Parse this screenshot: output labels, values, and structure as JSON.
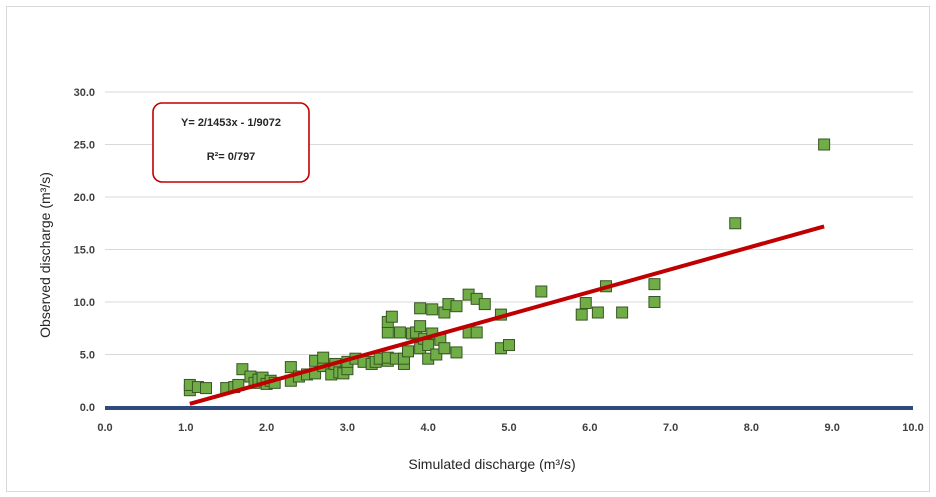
{
  "chart_data": {
    "type": "scatter",
    "xlabel": "Simulated discharge (m³/s)",
    "ylabel": "Observed discharge (m³/s)",
    "xlim": [
      0,
      10
    ],
    "ylim": [
      0,
      30
    ],
    "x_ticks": [
      "0.0",
      "1.0",
      "2.0",
      "3.0",
      "4.0",
      "5.0",
      "6.0",
      "7.0",
      "8.0",
      "9.0",
      "10.0"
    ],
    "y_ticks": [
      "0.0",
      "5.0",
      "10.0",
      "15.0",
      "20.0",
      "25.0",
      "30.0"
    ],
    "grid": "horizontal",
    "marker_color": "#70ad47",
    "marker_edge_color": "#375623",
    "trendline_color": "#c00000",
    "equation_box_color": "#c00000",
    "equation": "Y= 2/1453x - 1/9072",
    "r_squared": "R²= 0/797",
    "trendline": {
      "x": [
        1.05,
        8.9
      ],
      "y": [
        0.3,
        17.2
      ]
    },
    "points": [
      [
        1.05,
        1.6
      ],
      [
        1.05,
        2.1
      ],
      [
        1.15,
        1.9
      ],
      [
        1.25,
        1.8
      ],
      [
        1.5,
        1.8
      ],
      [
        1.6,
        1.9
      ],
      [
        1.65,
        2.1
      ],
      [
        1.7,
        3.6
      ],
      [
        1.8,
        2.9
      ],
      [
        1.85,
        2.3
      ],
      [
        1.9,
        2.6
      ],
      [
        1.95,
        2.8
      ],
      [
        2.0,
        2.2
      ],
      [
        2.05,
        2.5
      ],
      [
        2.1,
        2.3
      ],
      [
        2.3,
        2.5
      ],
      [
        2.3,
        3.8
      ],
      [
        2.4,
        2.9
      ],
      [
        2.5,
        3.1
      ],
      [
        2.6,
        3.2
      ],
      [
        2.6,
        4.4
      ],
      [
        2.7,
        3.9
      ],
      [
        2.7,
        4.7
      ],
      [
        2.8,
        3.1
      ],
      [
        2.85,
        4.1
      ],
      [
        2.9,
        3.3
      ],
      [
        2.95,
        3.2
      ],
      [
        3.0,
        3.6
      ],
      [
        3.0,
        4.3
      ],
      [
        3.1,
        4.6
      ],
      [
        3.2,
        4.3
      ],
      [
        3.3,
        4.1
      ],
      [
        3.35,
        4.3
      ],
      [
        3.4,
        4.6
      ],
      [
        3.5,
        4.4
      ],
      [
        3.5,
        4.7
      ],
      [
        3.5,
        7.1
      ],
      [
        3.5,
        8.1
      ],
      [
        3.55,
        8.6
      ],
      [
        3.6,
        4.6
      ],
      [
        3.65,
        7.1
      ],
      [
        3.7,
        4.1
      ],
      [
        3.7,
        4.6
      ],
      [
        3.75,
        5.3
      ],
      [
        3.8,
        7.0
      ],
      [
        3.85,
        7.1
      ],
      [
        3.9,
        5.6
      ],
      [
        3.9,
        7.7
      ],
      [
        3.9,
        9.4
      ],
      [
        3.95,
        6.5
      ],
      [
        4.0,
        4.6
      ],
      [
        4.0,
        5.9
      ],
      [
        4.05,
        7.0
      ],
      [
        4.05,
        9.3
      ],
      [
        4.1,
        5.0
      ],
      [
        4.15,
        6.4
      ],
      [
        4.2,
        5.6
      ],
      [
        4.2,
        9.0
      ],
      [
        4.25,
        9.8
      ],
      [
        4.35,
        5.2
      ],
      [
        4.35,
        9.6
      ],
      [
        4.5,
        7.1
      ],
      [
        4.5,
        10.7
      ],
      [
        4.6,
        7.1
      ],
      [
        4.6,
        10.3
      ],
      [
        4.7,
        9.8
      ],
      [
        4.9,
        5.6
      ],
      [
        4.9,
        8.8
      ],
      [
        5.0,
        5.9
      ],
      [
        5.4,
        11.0
      ],
      [
        5.9,
        8.8
      ],
      [
        5.95,
        9.9
      ],
      [
        6.1,
        9.0
      ],
      [
        6.2,
        11.5
      ],
      [
        6.4,
        9.0
      ],
      [
        6.8,
        10.0
      ],
      [
        6.8,
        11.7
      ],
      [
        7.8,
        17.5
      ],
      [
        8.9,
        25.0
      ]
    ]
  }
}
